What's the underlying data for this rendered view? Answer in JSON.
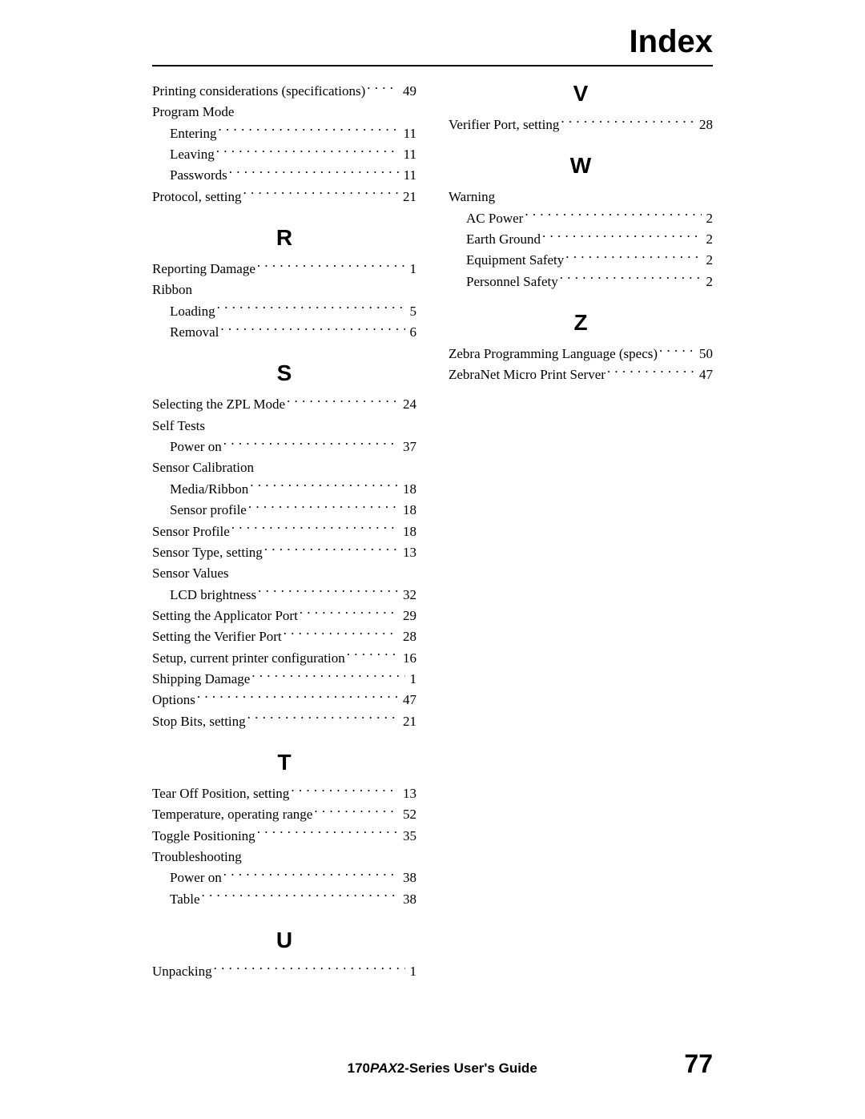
{
  "title": "Index",
  "footer": {
    "prefix": "170",
    "ital": "PAX",
    "suffix": "2-Series User's Guide",
    "page": "77"
  },
  "left": [
    {
      "type": "entry",
      "label": "Printing considerations (specifications)",
      "page": "49"
    },
    {
      "type": "entry",
      "label": "Program Mode",
      "noline": true
    },
    {
      "type": "sub",
      "label": "Entering",
      "page": "11"
    },
    {
      "type": "sub",
      "label": "Leaving",
      "page": "11"
    },
    {
      "type": "sub",
      "label": "Passwords",
      "page": "11"
    },
    {
      "type": "entry",
      "label": "Protocol, setting",
      "page": "21"
    },
    {
      "type": "letter",
      "text": "R"
    },
    {
      "type": "entry",
      "label": "Reporting Damage",
      "page": "1"
    },
    {
      "type": "entry",
      "label": "Ribbon",
      "noline": true
    },
    {
      "type": "sub",
      "label": "Loading",
      "page": "5"
    },
    {
      "type": "sub",
      "label": "Removal",
      "page": "6"
    },
    {
      "type": "letter",
      "text": "S"
    },
    {
      "type": "entry",
      "label": "Selecting the ZPL Mode",
      "page": "24"
    },
    {
      "type": "entry",
      "label": "Self Tests",
      "noline": true
    },
    {
      "type": "sub",
      "label": "Power on",
      "page": "37"
    },
    {
      "type": "entry",
      "label": "Sensor Calibration",
      "noline": true
    },
    {
      "type": "sub",
      "label": "Media/Ribbon",
      "page": "18"
    },
    {
      "type": "sub",
      "label": "Sensor profile",
      "page": "18"
    },
    {
      "type": "entry",
      "label": "Sensor Profile",
      "page": "18"
    },
    {
      "type": "entry",
      "label": "Sensor Type, setting",
      "page": "13"
    },
    {
      "type": "entry",
      "label": "Sensor Values",
      "noline": true
    },
    {
      "type": "sub",
      "label": "LCD brightness",
      "page": "32"
    },
    {
      "type": "entry",
      "label": "Setting the Applicator Port",
      "page": "29"
    },
    {
      "type": "entry",
      "label": "Setting the Verifier Port",
      "page": "28"
    },
    {
      "type": "entry",
      "label": "Setup, current printer configuration",
      "page": "16"
    },
    {
      "type": "entry",
      "label": "Shipping Damage",
      "page": "1"
    },
    {
      "type": "entry",
      "label": "Options",
      "page": "47"
    },
    {
      "type": "entry",
      "label": "Stop Bits, setting",
      "page": "21"
    },
    {
      "type": "letter",
      "text": "T"
    },
    {
      "type": "entry",
      "label": "Tear Off Position, setting",
      "page": "13"
    },
    {
      "type": "entry",
      "label": "Temperature, operating range",
      "page": "52"
    },
    {
      "type": "entry",
      "label": "Toggle Positioning",
      "page": "35"
    },
    {
      "type": "entry",
      "label": "Troubleshooting",
      "noline": true
    },
    {
      "type": "sub",
      "label": "Power on",
      "page": "38"
    },
    {
      "type": "sub",
      "label": "Table",
      "page": "38"
    },
    {
      "type": "letter",
      "text": "U"
    },
    {
      "type": "entry",
      "label": "Unpacking",
      "page": "1"
    }
  ],
  "right": [
    {
      "type": "letter",
      "text": "V",
      "first": true
    },
    {
      "type": "entry",
      "label": "Verifier Port, setting",
      "page": "28"
    },
    {
      "type": "letter",
      "text": "W"
    },
    {
      "type": "entry",
      "label": "Warning",
      "noline": true
    },
    {
      "type": "sub",
      "label": "AC Power",
      "page": "2"
    },
    {
      "type": "sub",
      "label": "Earth Ground",
      "page": "2"
    },
    {
      "type": "sub",
      "label": "Equipment Safety",
      "page": "2"
    },
    {
      "type": "sub",
      "label": "Personnel Safety",
      "page": "2"
    },
    {
      "type": "letter",
      "text": "Z"
    },
    {
      "type": "entry",
      "label": "Zebra Programming Language (specs)",
      "page": "50"
    },
    {
      "type": "entry",
      "label": "ZebraNet Micro Print Server",
      "page": "47"
    }
  ]
}
